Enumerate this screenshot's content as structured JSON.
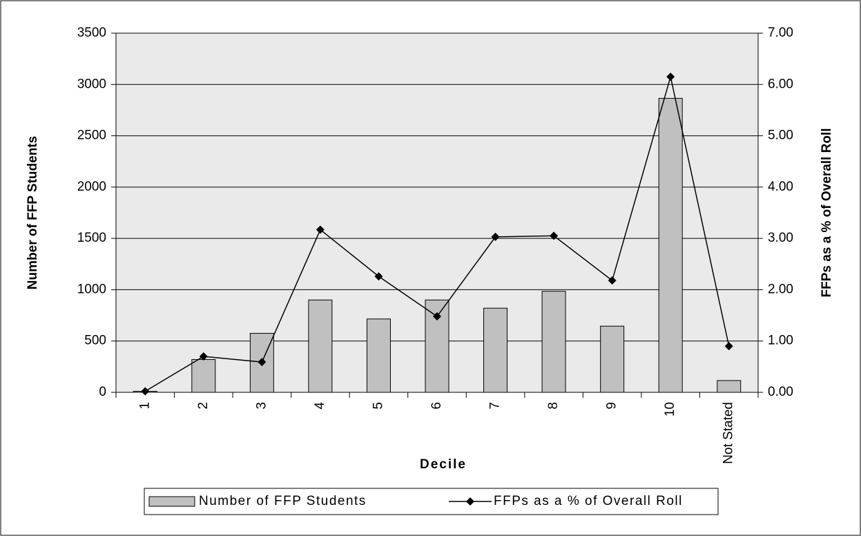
{
  "chart_data": {
    "type": "bar_line",
    "x_label": "Decile",
    "y_label": "Number of  FFP Students",
    "y2_label": "FFPs as a % of Overall Roll",
    "categories": [
      "1",
      "2",
      "3",
      "4",
      "5",
      "6",
      "7",
      "8",
      "9",
      "10",
      "Not Stated"
    ],
    "series": [
      {
        "name": "Number of  FFP Students",
        "type": "bar",
        "color": "#c0c0c0",
        "values": [
          10,
          320,
          575,
          900,
          715,
          900,
          820,
          985,
          645,
          2865,
          115
        ]
      },
      {
        "name": "FFPs as a % of Overall Roll",
        "type": "line",
        "axis": "y2",
        "color": "#000000",
        "values": [
          0.02,
          0.7,
          0.59,
          3.17,
          2.26,
          1.48,
          3.03,
          3.05,
          2.18,
          6.15,
          0.9
        ]
      }
    ],
    "ylim": [
      0,
      3500
    ],
    "yticks": [
      0,
      500,
      1000,
      1500,
      2000,
      2500,
      3000,
      3500
    ],
    "y2lim": [
      0,
      7
    ],
    "y2ticks": [
      {
        "value": 0,
        "label": "0.00"
      },
      {
        "value": 1,
        "label": "1.00"
      },
      {
        "value": 2,
        "label": "2.00"
      },
      {
        "value": 3,
        "label": "3.00"
      },
      {
        "value": 4,
        "label": "4.00"
      },
      {
        "value": 5,
        "label": "5.00"
      },
      {
        "value": 6,
        "label": "6.00"
      },
      {
        "value": 7,
        "label": "7.00"
      }
    ],
    "grid": true,
    "legend": "bottom",
    "plot_background": "#eaeaea"
  }
}
